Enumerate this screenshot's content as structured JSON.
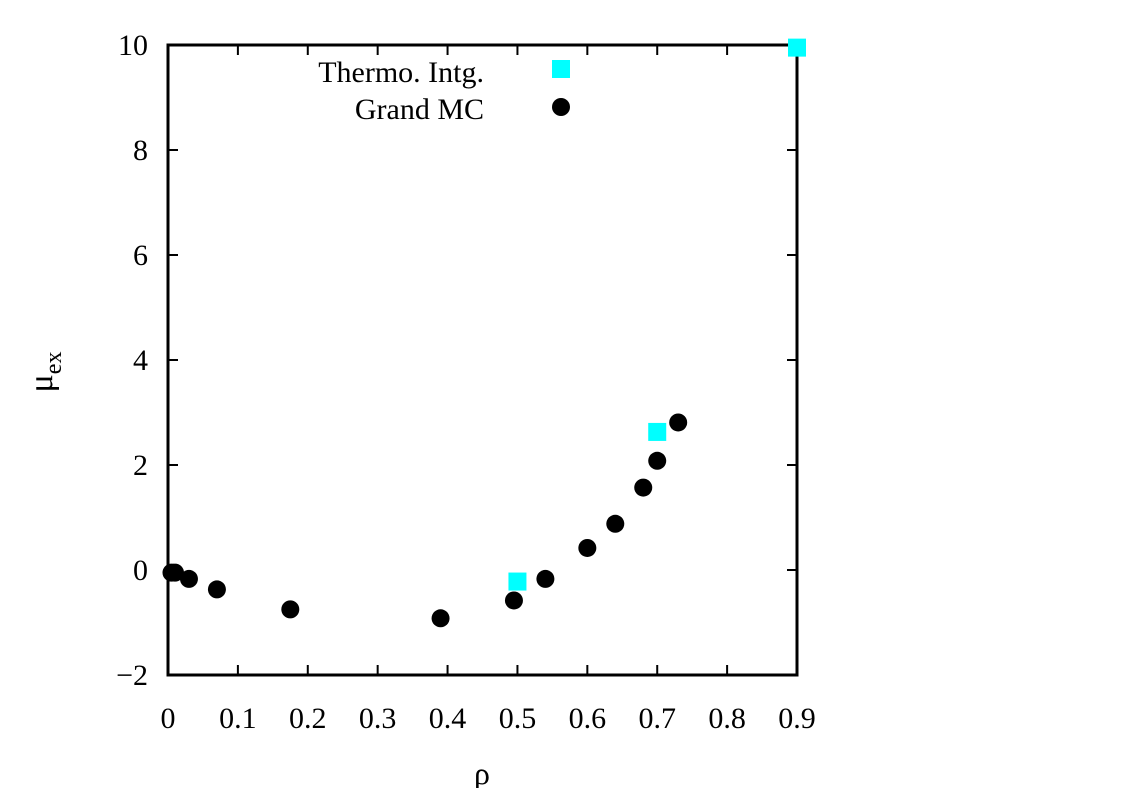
{
  "chart_data": {
    "type": "scatter",
    "xlabel": "ρ",
    "ylabel_main": "μ",
    "ylabel_sub": "ex",
    "xlim": [
      0,
      0.9
    ],
    "ylim": [
      -2,
      10
    ],
    "x_ticks": [
      {
        "value": 0,
        "label": "0"
      },
      {
        "value": 0.1,
        "label": "0.1"
      },
      {
        "value": 0.2,
        "label": "0.2"
      },
      {
        "value": 0.3,
        "label": "0.3"
      },
      {
        "value": 0.4,
        "label": "0.4"
      },
      {
        "value": 0.5,
        "label": "0.5"
      },
      {
        "value": 0.6,
        "label": "0.6"
      },
      {
        "value": 0.7,
        "label": "0.7"
      },
      {
        "value": 0.8,
        "label": "0.8"
      },
      {
        "value": 0.9,
        "label": "0.9"
      }
    ],
    "y_ticks": [
      {
        "value": -2,
        "label": "−2"
      },
      {
        "value": 0,
        "label": "0"
      },
      {
        "value": 2,
        "label": "2"
      },
      {
        "value": 4,
        "label": "4"
      },
      {
        "value": 6,
        "label": "6"
      },
      {
        "value": 8,
        "label": "8"
      },
      {
        "value": 10,
        "label": "10"
      }
    ],
    "grid": false,
    "legend_position": "top-right",
    "series": [
      {
        "name": "Thermo. Intg.",
        "marker": "square",
        "color": "#00ffff",
        "points": [
          [
            0.5,
            -0.22
          ],
          [
            0.7,
            2.63
          ],
          [
            0.9,
            9.95
          ]
        ]
      },
      {
        "name": "Grand MC",
        "marker": "circle",
        "color": "#000000",
        "points": [
          [
            0.005,
            -0.05
          ],
          [
            0.01,
            -0.05
          ],
          [
            0.03,
            -0.17
          ],
          [
            0.07,
            -0.37
          ],
          [
            0.175,
            -0.75
          ],
          [
            0.39,
            -0.92
          ],
          [
            0.495,
            -0.58
          ],
          [
            0.54,
            -0.17
          ],
          [
            0.6,
            0.42
          ],
          [
            0.64,
            0.88
          ],
          [
            0.68,
            1.57
          ],
          [
            0.7,
            2.08
          ],
          [
            0.73,
            2.81
          ]
        ]
      }
    ]
  }
}
